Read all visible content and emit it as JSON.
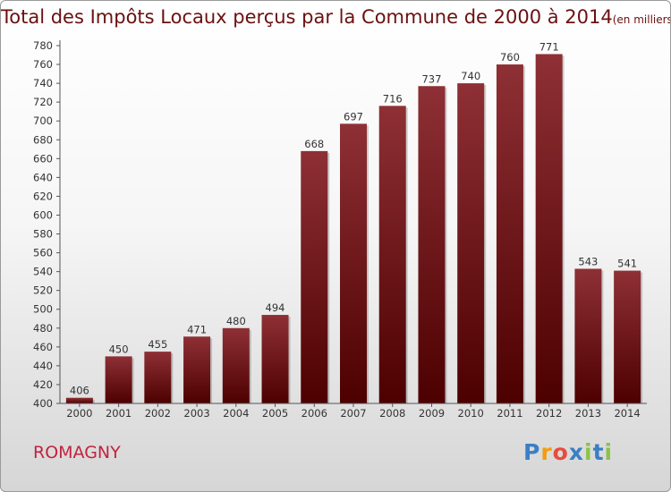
{
  "header": {
    "title": "Total des Impôts Locaux perçus par la Commune de 2000 à 2014",
    "unit": "(en milliers d'€)"
  },
  "footer": {
    "commune": "ROMAGNY",
    "logo": "Proxiti"
  },
  "colors": {
    "title": "#6b1010",
    "commune": "#c2233f",
    "bar_top": "#8e3035",
    "bar_bottom": "#4d0000",
    "axis": "#555555",
    "logo": [
      "#3b7fc4",
      "#f39c12",
      "#e74c3c",
      "#3b7fc4",
      "#8bc34a",
      "#3b7fc4",
      "#8bc34a"
    ]
  },
  "chart_data": {
    "type": "bar",
    "categories": [
      "2000",
      "2001",
      "2002",
      "2003",
      "2004",
      "2005",
      "2006",
      "2007",
      "2008",
      "2009",
      "2010",
      "2011",
      "2012",
      "2013",
      "2014"
    ],
    "values": [
      406,
      450,
      455,
      471,
      480,
      494,
      668,
      697,
      716,
      737,
      740,
      760,
      771,
      543,
      541
    ],
    "ylim": [
      400,
      780
    ],
    "ytick_step": 20,
    "grid": false,
    "data_labels": true
  }
}
